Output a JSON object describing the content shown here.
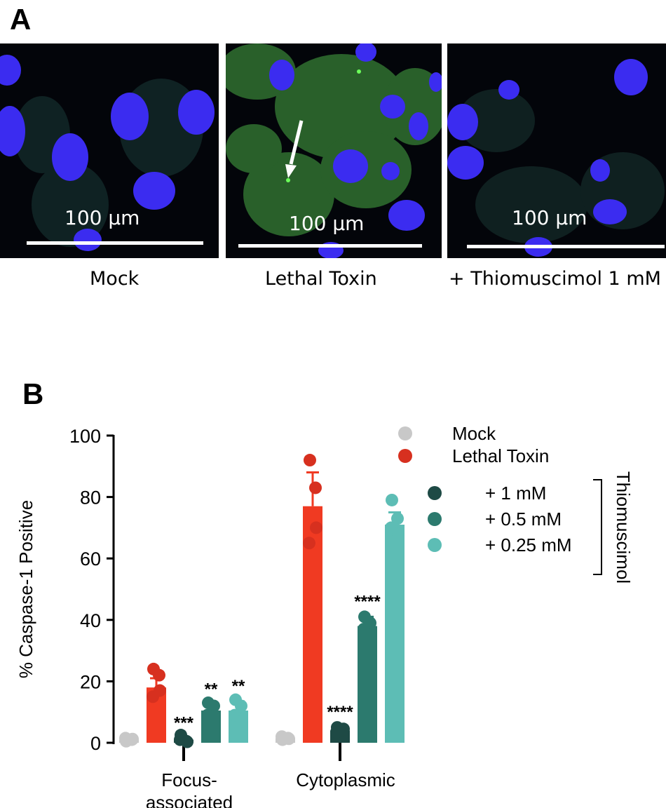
{
  "panel_labels": {
    "a": "A",
    "b": "B"
  },
  "micrographs": [
    {
      "caption": "Mock",
      "scale_bar": "100 µm"
    },
    {
      "caption": "Lethal Toxin",
      "scale_bar": "100 µm"
    },
    {
      "caption": "+ Thiomuscimol 1 mM",
      "scale_bar": "100 µm"
    }
  ],
  "colors": {
    "mock": "#c8c8c8",
    "lethal_toxin": "#d7301f",
    "lethal_toxin_bar": "#f03a22",
    "thio_1mM": "#1e4a45",
    "thio_05mM": "#2c7a6e",
    "thio_025mM": "#5dbdb5",
    "nucleus": "#3b2cf0",
    "caspase": "#5fd24a"
  },
  "chart_data": {
    "type": "bar",
    "title": "",
    "xlabel": "",
    "ylabel": "% Caspase-1 Positive",
    "ylim": [
      0,
      100
    ],
    "yticks": [
      0,
      20,
      40,
      60,
      80,
      100
    ],
    "categories": [
      "Focus-associated",
      "Cytoplasmic"
    ],
    "category_lines": [
      [
        "Focus-",
        "associated"
      ],
      [
        "Cytoplasmic"
      ]
    ],
    "series": [
      {
        "name": "Mock",
        "values": [
          1.0,
          1.5
        ],
        "error": [
          0.5,
          0.5
        ],
        "sig": [
          "",
          ""
        ],
        "points": [
          [
            0.5,
            1.0,
            1.5,
            1.2
          ],
          [
            1.0,
            1.5,
            2.0,
            1.3
          ]
        ]
      },
      {
        "name": "Lethal Toxin",
        "values": [
          18,
          77
        ],
        "error": [
          3,
          11
        ],
        "sig": [
          "",
          ""
        ],
        "points": [
          [
            24,
            22,
            15,
            17
          ],
          [
            92,
            83,
            65,
            70
          ]
        ]
      },
      {
        "name": "+ 1 mM",
        "values": [
          1.0,
          4.0
        ],
        "error": [
          0.5,
          1.0
        ],
        "sig": [
          "***",
          "****"
        ],
        "points": [
          [
            2.5,
            0.5,
            1.0,
            0.3
          ],
          [
            5.0,
            4.0,
            3.5,
            4.5
          ]
        ]
      },
      {
        "name": "+ 0.5 mM",
        "values": [
          10.5,
          38
        ],
        "error": [
          2,
          3
        ],
        "sig": [
          "**",
          "****"
        ],
        "points": [
          [
            13,
            12,
            9,
            8
          ],
          [
            41,
            39,
            37,
            35
          ]
        ]
      },
      {
        "name": "+ 0.25 mM",
        "values": [
          10.5,
          71
        ],
        "error": [
          3,
          4
        ],
        "sig": [
          "**",
          ""
        ],
        "points": [
          [
            14,
            12,
            9,
            7
          ],
          [
            79,
            73,
            70,
            68
          ]
        ]
      }
    ],
    "legend_group_label": "Thiomuscimol",
    "legend_placement": "top-right"
  }
}
